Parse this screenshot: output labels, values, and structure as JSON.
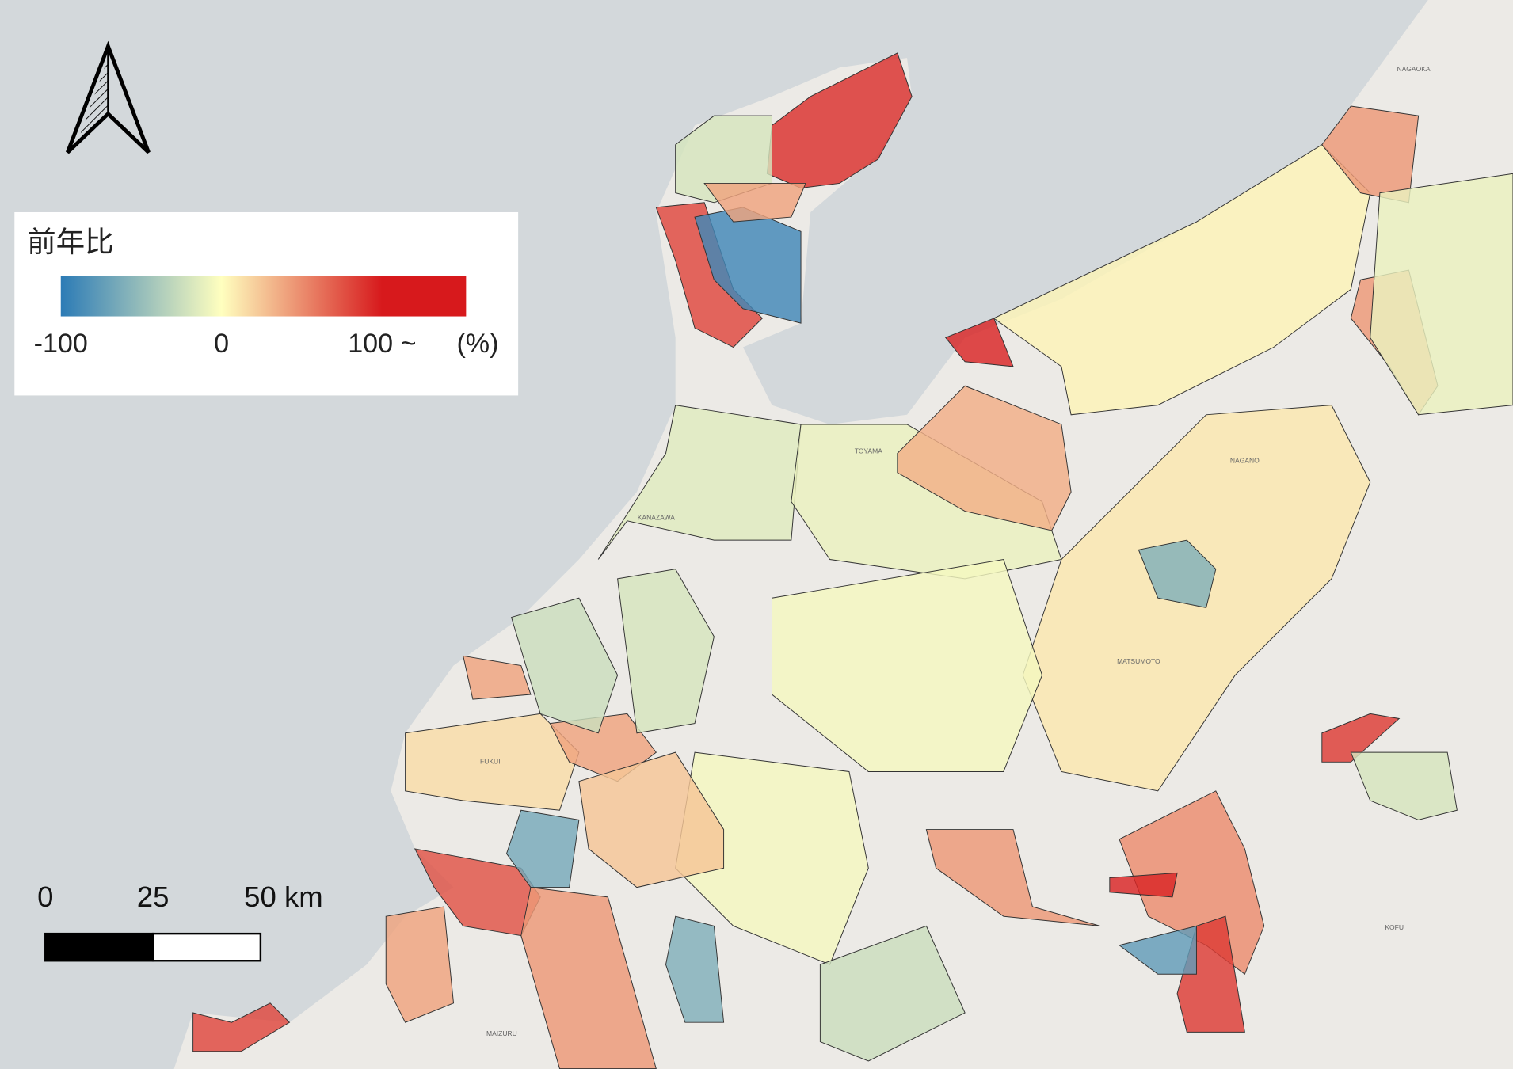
{
  "legend": {
    "title": "前年比",
    "ticks": [
      -100,
      0,
      {
        "value": 100,
        "label": "100 ~"
      }
    ],
    "unit": "(%)",
    "colors": [
      "#2c7bb6",
      "#ffffbf",
      "#d7191c"
    ]
  },
  "scale_bar": {
    "ticks": [
      0,
      25,
      {
        "value": 50,
        "label": "50 km"
      }
    ]
  },
  "region_values": [
    90,
    -20,
    80,
    -90,
    40,
    -15,
    -10,
    35,
    95,
    5,
    45,
    45,
    10,
    -60,
    -5,
    -5,
    15,
    40,
    25,
    75,
    -65,
    45,
    -60,
    50,
    85,
    -75,
    95,
    45,
    85,
    80,
    40,
    -25,
    -20,
    40,
    -25,
    -20,
    -10
  ],
  "place_labels": [
    "NAGAOKA",
    "TOYAMA",
    "KANAZAWA",
    "NAGANO",
    "MATSUMOTO",
    "FUKUI",
    "MAIZURU",
    "KOFU"
  ]
}
